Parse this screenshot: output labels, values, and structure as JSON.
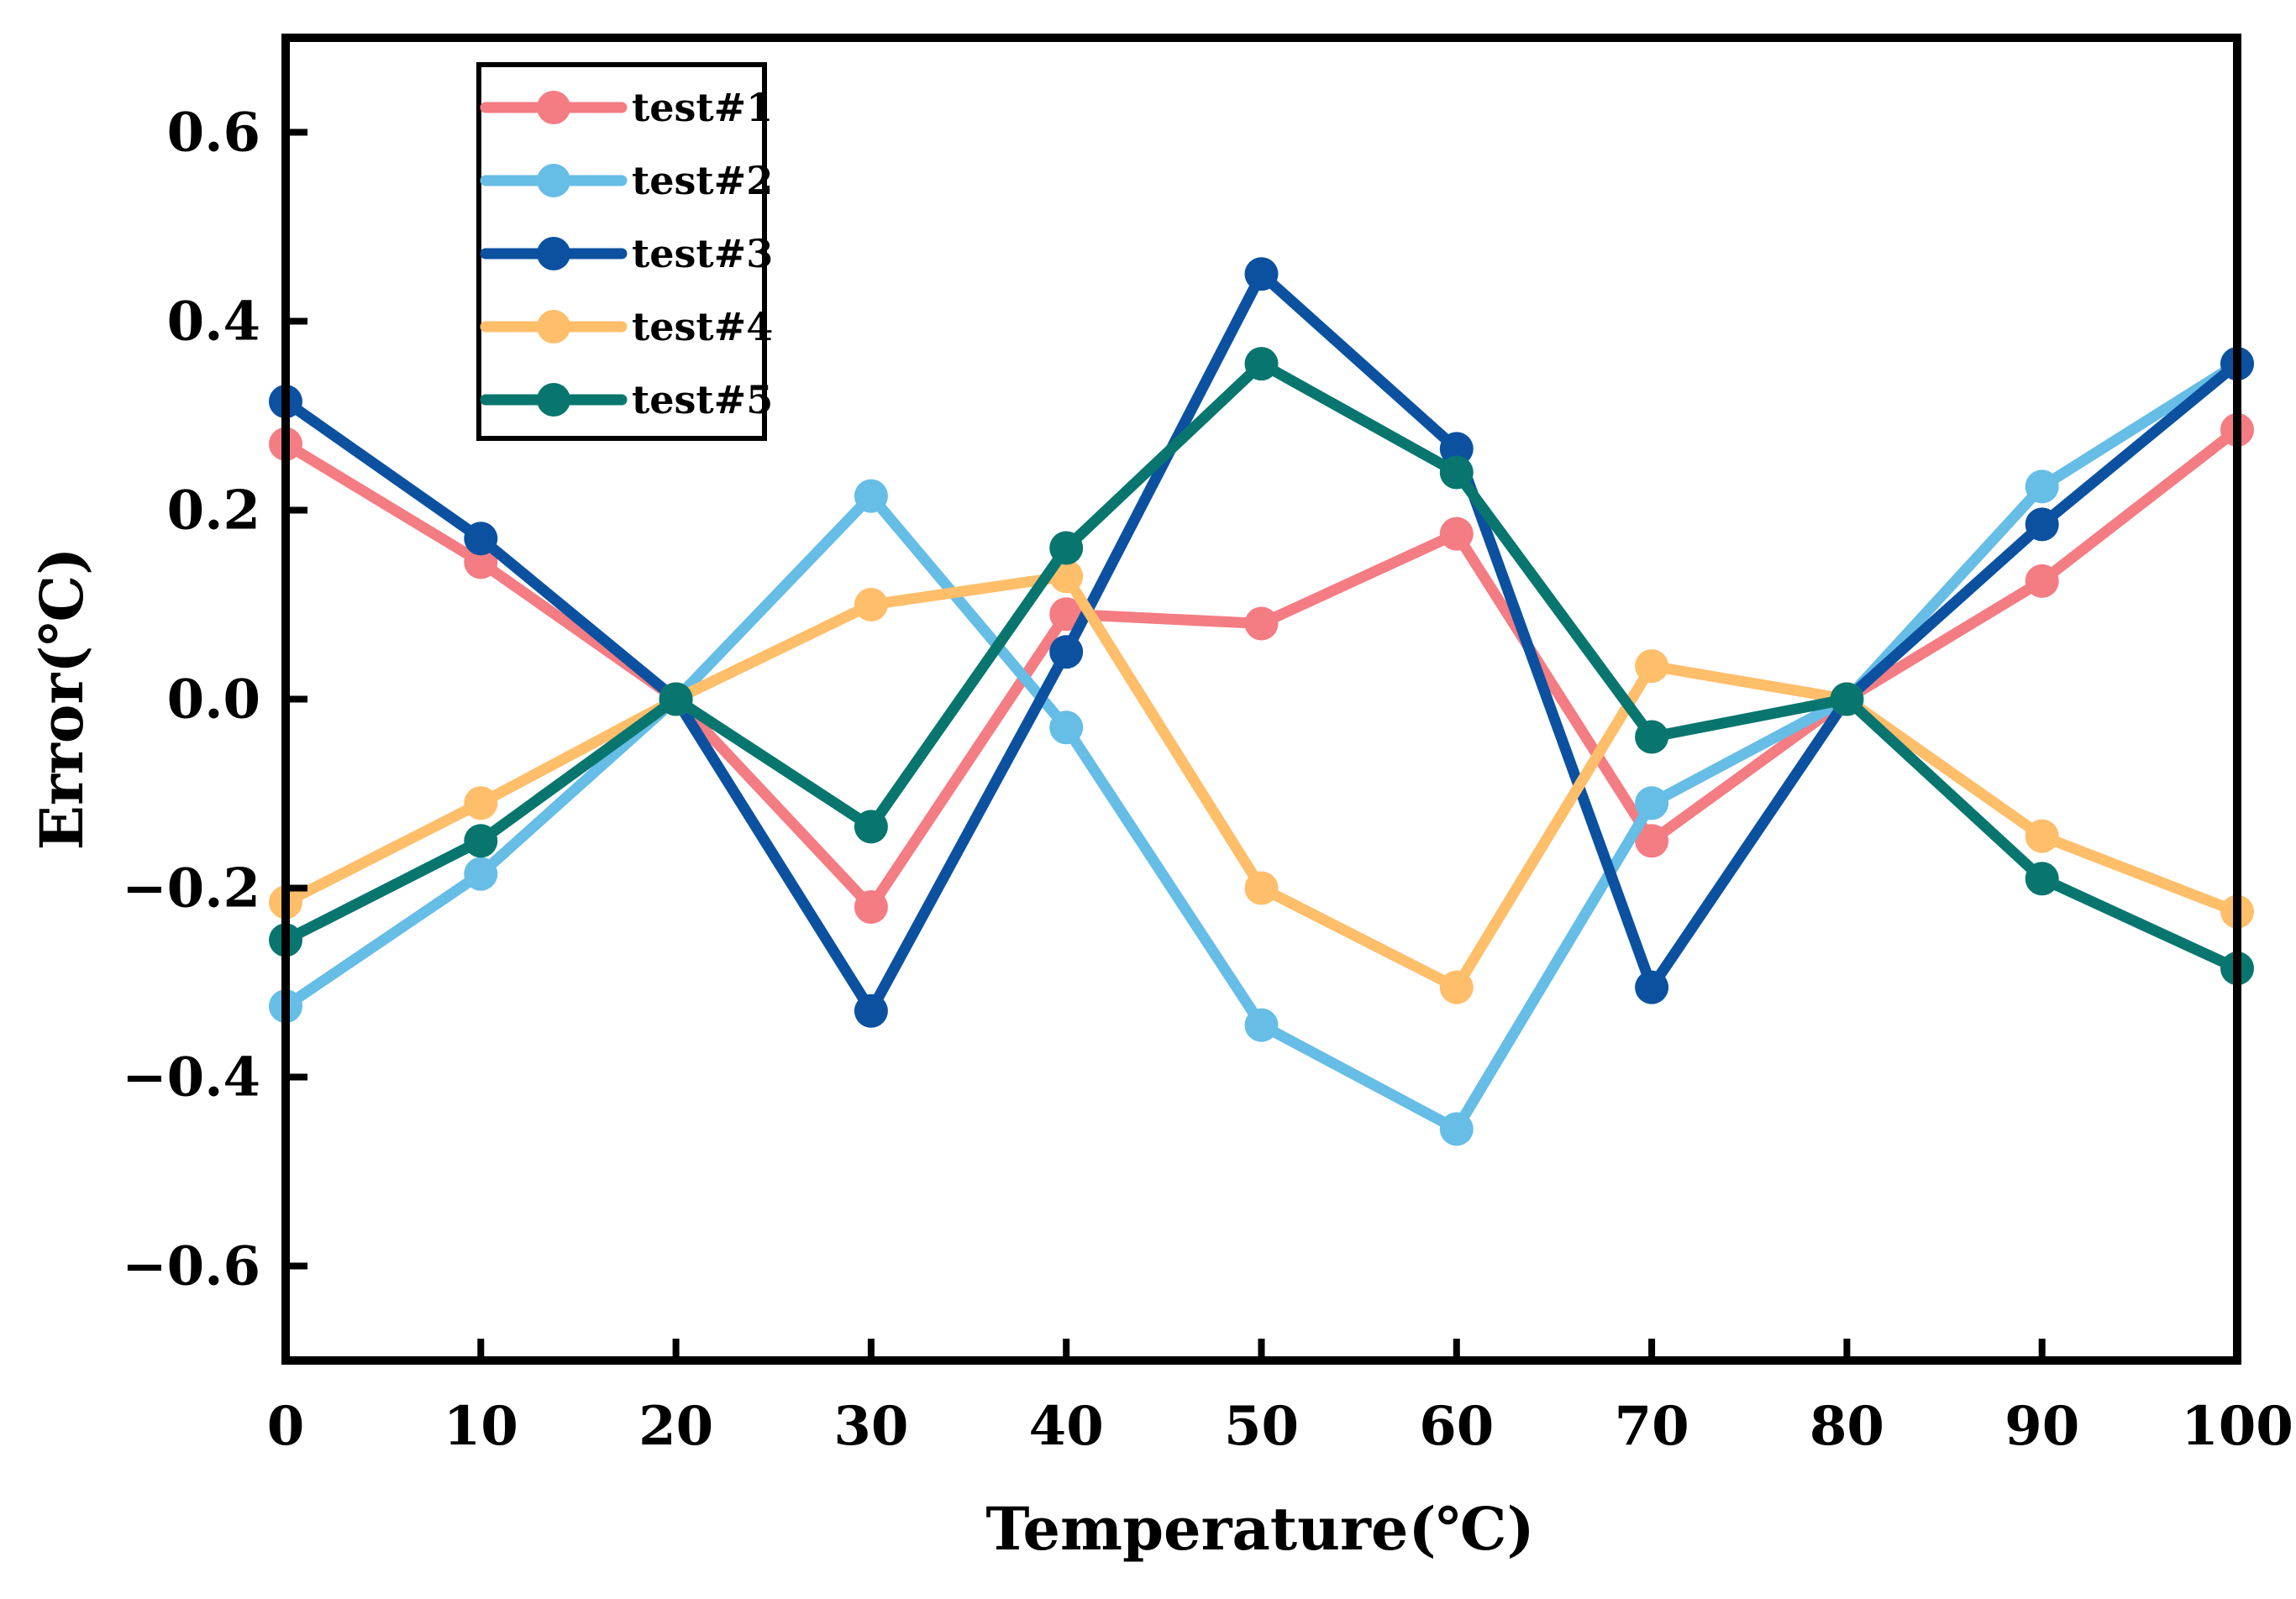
{
  "chart_data": {
    "type": "line",
    "title": "",
    "xlabel": "Temperature(℃)",
    "ylabel": "Error(℃)",
    "xlim": [
      0,
      100
    ],
    "ylim": [
      -0.7,
      0.7
    ],
    "x": [
      0,
      10,
      20,
      30,
      40,
      50,
      60,
      70,
      80,
      90,
      100
    ],
    "x_ticks": [
      "0",
      "10",
      "20",
      "30",
      "40",
      "50",
      "60",
      "70",
      "80",
      "90",
      "100"
    ],
    "y_ticks": [
      {
        "value": 0.6,
        "label": "0.6"
      },
      {
        "value": 0.4,
        "label": "0.4"
      },
      {
        "value": 0.2,
        "label": "0.2"
      },
      {
        "value": 0.0,
        "label": "0.0"
      },
      {
        "value": -0.2,
        "label": "−0.2"
      },
      {
        "value": -0.4,
        "label": "−0.4"
      },
      {
        "value": -0.6,
        "label": "−0.6"
      }
    ],
    "grid": false,
    "legend_position": "top-left",
    "series": [
      {
        "name": "test#1",
        "color": "#F47C83",
        "values": [
          0.27,
          0.145,
          0.0,
          -0.22,
          0.09,
          0.08,
          0.175,
          -0.15,
          0.0,
          0.125,
          0.285
        ]
      },
      {
        "name": "test#2",
        "color": "#66BDE6",
        "values": [
          -0.325,
          -0.185,
          0.0,
          0.215,
          -0.03,
          -0.345,
          -0.455,
          -0.11,
          0.0,
          0.225,
          0.355
        ]
      },
      {
        "name": "test#3",
        "color": "#0B51A0",
        "values": [
          0.315,
          0.17,
          0.0,
          -0.33,
          0.05,
          0.45,
          0.265,
          -0.305,
          0.0,
          0.185,
          0.355
        ]
      },
      {
        "name": "test#4",
        "color": "#FFBE6A",
        "values": [
          -0.215,
          -0.11,
          0.0,
          0.1,
          0.13,
          -0.2,
          -0.305,
          0.035,
          0.0,
          -0.145,
          -0.225
        ]
      },
      {
        "name": "test#5",
        "color": "#08766E",
        "values": [
          -0.255,
          -0.15,
          0.0,
          -0.135,
          0.16,
          0.355,
          0.24,
          -0.04,
          0.0,
          -0.19,
          -0.285
        ]
      }
    ]
  }
}
